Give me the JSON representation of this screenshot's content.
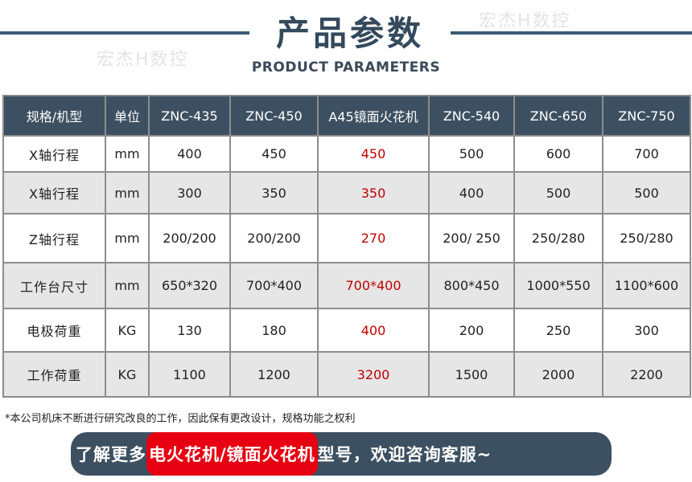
{
  "header": {
    "title": "产品参数",
    "subtitle": "PRODUCT PARAMETERS",
    "watermark": "宏杰H数控",
    "accent": "#3c5a74"
  },
  "table": {
    "columns": [
      "规格/机型",
      "单位",
      "ZNC-435",
      "ZNC-450",
      "A45镜面火花机",
      "ZNC-540",
      "ZNC-650",
      "ZNC-750"
    ],
    "rows": [
      [
        "X轴行程",
        "mm",
        "400",
        "450",
        "450",
        "500",
        "600",
        "700"
      ],
      [
        "X轴行程",
        "mm",
        "300",
        "350",
        "350",
        "400",
        "500",
        "500"
      ],
      [
        "Z轴行程",
        "mm",
        "200/200",
        "200/200",
        "270",
        "200/ 250",
        "250/280",
        "250/280"
      ],
      [
        "工作台尺寸",
        "mm",
        "650*320",
        "700*400",
        "700*400",
        "800*450",
        "1000*550",
        "1100*600"
      ],
      [
        "电极荷重",
        "KG",
        "130",
        "180",
        "400",
        "200",
        "250",
        "300"
      ],
      [
        "工作荷重",
        "KG",
        "1100",
        "1200",
        "3200",
        "1500",
        "2000",
        "2200"
      ]
    ],
    "highlight_color": "#c00000",
    "header_bg": "#3d5061"
  },
  "note": "*本公司机床不断进行研究改良的工作，因此保有更改设计，规格功能之权利",
  "banner": {
    "prefix": "了解更多",
    "highlight": "电火花机/镜面火花机",
    "suffix": "型号，欢迎咨询客服~",
    "bg": "#3d5061",
    "highlight_bg": "#e60012"
  }
}
